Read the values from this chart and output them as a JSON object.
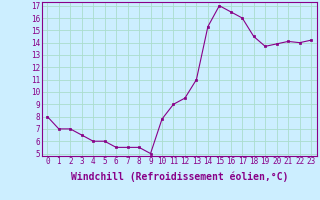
{
  "x": [
    0,
    1,
    2,
    3,
    4,
    5,
    6,
    7,
    8,
    9,
    10,
    11,
    12,
    13,
    14,
    15,
    16,
    17,
    18,
    19,
    20,
    21,
    22,
    23
  ],
  "y": [
    8.0,
    7.0,
    7.0,
    6.5,
    6.0,
    6.0,
    5.5,
    5.5,
    5.5,
    5.0,
    7.8,
    9.0,
    9.5,
    11.0,
    15.3,
    17.0,
    16.5,
    16.0,
    14.5,
    13.7,
    13.9,
    14.1,
    14.0,
    14.2
  ],
  "xlim": [
    -0.5,
    23.5
  ],
  "ylim": [
    4.8,
    17.3
  ],
  "yticks": [
    5,
    6,
    7,
    8,
    9,
    10,
    11,
    12,
    13,
    14,
    15,
    16,
    17
  ],
  "xticks": [
    0,
    1,
    2,
    3,
    4,
    5,
    6,
    7,
    8,
    9,
    10,
    11,
    12,
    13,
    14,
    15,
    16,
    17,
    18,
    19,
    20,
    21,
    22,
    23
  ],
  "xlabel": "Windchill (Refroidissement éolien,°C)",
  "line_color": "#880088",
  "marker": "s",
  "marker_size": 2,
  "bg_color": "#cceeff",
  "grid_color": "#aaddcc",
  "tick_label_fontsize": 5.5,
  "xlabel_fontsize": 7
}
